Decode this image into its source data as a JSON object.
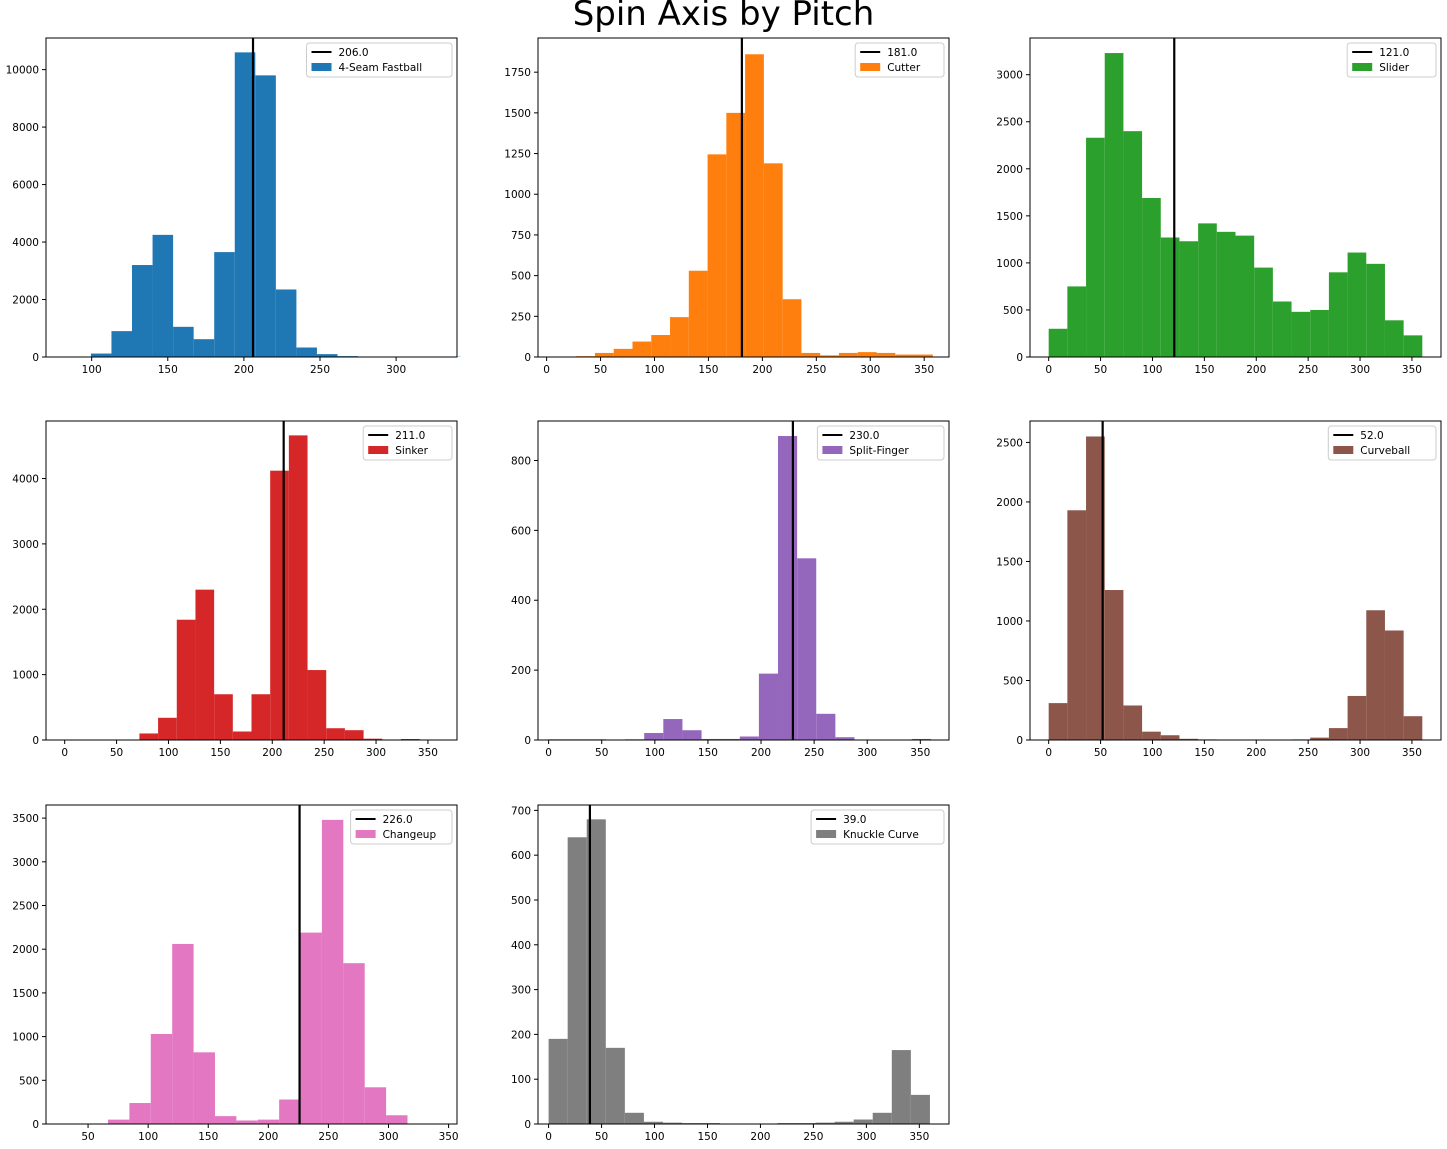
{
  "title": "Spin Axis by Pitch",
  "chart_data": [
    {
      "type": "bar",
      "subtype": "histogram",
      "name": "4-Seam Fastball",
      "color": "#1f77b4",
      "median": 206.0,
      "median_label": "206.0",
      "xlim": [
        70,
        340
      ],
      "ylim": [
        0,
        11100
      ],
      "xticks": [
        100,
        150,
        200,
        250,
        300
      ],
      "yticks": [
        0,
        2000,
        4000,
        6000,
        8000,
        10000
      ],
      "bin_start": 86,
      "bin_width": 13.5,
      "values": [
        10,
        120,
        900,
        3200,
        4250,
        1050,
        620,
        3650,
        10600,
        9800,
        2350,
        330,
        100,
        30,
        10,
        5,
        5,
        5,
        10,
        0
      ]
    },
    {
      "type": "bar",
      "subtype": "histogram",
      "name": "Cutter",
      "color": "#ff7f0e",
      "median": 181.0,
      "median_label": "181.0",
      "xlim": [
        -8,
        373
      ],
      "ylim": [
        0,
        1960
      ],
      "xticks": [
        0,
        50,
        100,
        150,
        200,
        250,
        300,
        350
      ],
      "yticks": [
        0,
        250,
        500,
        750,
        1000,
        1250,
        1500,
        1750
      ],
      "bin_start": 10,
      "bin_width": 17.4,
      "values": [
        3,
        5,
        25,
        50,
        95,
        135,
        245,
        530,
        1245,
        1500,
        1860,
        1190,
        355,
        25,
        10,
        25,
        30,
        25,
        15,
        15
      ]
    },
    {
      "type": "bar",
      "subtype": "histogram",
      "name": "Slider",
      "color": "#2ca02c",
      "median": 121.0,
      "median_label": "121.0",
      "xlim": [
        -18,
        378
      ],
      "ylim": [
        0,
        3390
      ],
      "xticks": [
        0,
        50,
        100,
        150,
        200,
        250,
        300,
        350
      ],
      "yticks": [
        0,
        500,
        1000,
        1500,
        2000,
        2500,
        3000
      ],
      "bin_start": 0,
      "bin_width": 18,
      "values": [
        300,
        750,
        2330,
        3230,
        2400,
        1690,
        1270,
        1230,
        1420,
        1330,
        1290,
        950,
        590,
        480,
        500,
        900,
        1110,
        990,
        390,
        230
      ]
    },
    {
      "type": "bar",
      "subtype": "histogram",
      "name": "Sinker",
      "color": "#d62728",
      "median": 211.0,
      "median_label": "211.0",
      "xlim": [
        -18,
        378
      ],
      "ylim": [
        0,
        4880
      ],
      "xticks": [
        0,
        50,
        100,
        150,
        200,
        250,
        300,
        350
      ],
      "yticks": [
        0,
        1000,
        2000,
        3000,
        4000
      ],
      "bin_start": 0,
      "bin_width": 18,
      "values": [
        0,
        0,
        0,
        0,
        100,
        340,
        1840,
        2300,
        700,
        130,
        700,
        4120,
        4660,
        1070,
        180,
        150,
        20,
        5,
        15,
        0
      ]
    },
    {
      "type": "bar",
      "subtype": "histogram",
      "name": "Split-Finger",
      "color": "#9467bd",
      "median": 230.0,
      "median_label": "230.0",
      "xlim": [
        -10,
        377
      ],
      "ylim": [
        0,
        913
      ],
      "xticks": [
        0,
        50,
        100,
        150,
        200,
        250,
        300,
        350
      ],
      "yticks": [
        0,
        200,
        400,
        600,
        800
      ],
      "bin_start": 0,
      "bin_width": 18,
      "values": [
        2,
        2,
        2,
        0,
        2,
        20,
        60,
        28,
        3,
        3,
        10,
        190,
        870,
        520,
        75,
        8,
        0,
        0,
        0,
        3
      ]
    },
    {
      "type": "bar",
      "subtype": "histogram",
      "name": "Curveball",
      "color": "#8c564b",
      "median": 52.0,
      "median_label": "52.0",
      "xlim": [
        -18,
        378
      ],
      "ylim": [
        0,
        2680
      ],
      "xticks": [
        0,
        50,
        100,
        150,
        200,
        250,
        300,
        350
      ],
      "yticks": [
        0,
        500,
        1000,
        1500,
        2000,
        2500
      ],
      "bin_start": 0,
      "bin_width": 18,
      "values": [
        310,
        1930,
        2550,
        1260,
        290,
        70,
        40,
        10,
        5,
        0,
        0,
        0,
        0,
        5,
        20,
        100,
        370,
        1090,
        920,
        200
      ]
    },
    {
      "type": "bar",
      "subtype": "histogram",
      "name": "Changeup",
      "color": "#e377c2",
      "median": 226.0,
      "median_label": "226.0",
      "xlim": [
        15,
        357
      ],
      "ylim": [
        0,
        3650
      ],
      "xticks": [
        50,
        100,
        150,
        200,
        250,
        300,
        350
      ],
      "yticks": [
        0,
        500,
        1000,
        1500,
        2000,
        2500,
        3000,
        3500
      ],
      "bin_start": 31,
      "bin_width": 17.8,
      "values": [
        5,
        5,
        50,
        240,
        1030,
        2060,
        820,
        90,
        40,
        50,
        280,
        2190,
        3480,
        1840,
        420,
        100,
        5,
        0,
        0,
        0
      ]
    },
    {
      "type": "bar",
      "subtype": "histogram",
      "name": "Knuckle Curve",
      "color": "#7f7f7f",
      "median": 39.0,
      "median_label": "39.0",
      "xlim": [
        -10,
        378
      ],
      "ylim": [
        0,
        712
      ],
      "xticks": [
        0,
        50,
        100,
        150,
        200,
        250,
        300,
        350
      ],
      "yticks": [
        0,
        100,
        200,
        300,
        400,
        500,
        600,
        700
      ],
      "bin_start": 0,
      "bin_width": 18,
      "values": [
        190,
        640,
        680,
        170,
        25,
        5,
        3,
        2,
        2,
        0,
        0,
        0,
        2,
        2,
        3,
        5,
        10,
        25,
        165,
        65
      ]
    }
  ]
}
